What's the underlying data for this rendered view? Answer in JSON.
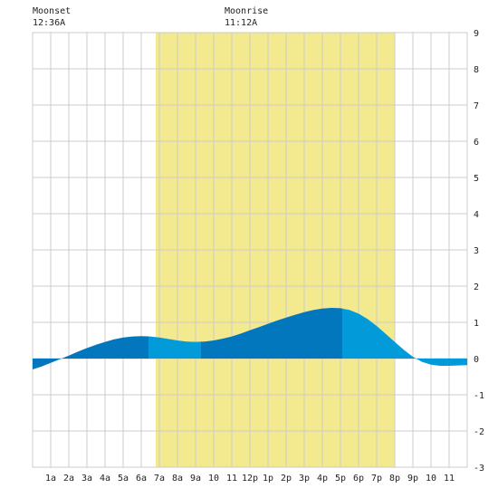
{
  "colors": {
    "background": "#ffffff",
    "plot_background": "#ffffff",
    "grid": "#cccccc",
    "daylight": "#f3ea8f",
    "tide_dark": "#0277bd",
    "tide_light": "#029ad9"
  },
  "chart_data": {
    "type": "area",
    "title": "",
    "xlabel": "",
    "ylabel": "",
    "x_unit": "hour of day",
    "xlim": [
      0,
      24
    ],
    "ylim": [
      -3,
      9
    ],
    "x_ticks": [
      {
        "hour": 1,
        "label": "1a"
      },
      {
        "hour": 2,
        "label": "2a"
      },
      {
        "hour": 3,
        "label": "3a"
      },
      {
        "hour": 4,
        "label": "4a"
      },
      {
        "hour": 5,
        "label": "5a"
      },
      {
        "hour": 6,
        "label": "6a"
      },
      {
        "hour": 7,
        "label": "7a"
      },
      {
        "hour": 8,
        "label": "8a"
      },
      {
        "hour": 9,
        "label": "9a"
      },
      {
        "hour": 10,
        "label": "10"
      },
      {
        "hour": 11,
        "label": "11"
      },
      {
        "hour": 12,
        "label": "12p"
      },
      {
        "hour": 13,
        "label": "1p"
      },
      {
        "hour": 14,
        "label": "2p"
      },
      {
        "hour": 15,
        "label": "3p"
      },
      {
        "hour": 16,
        "label": "4p"
      },
      {
        "hour": 17,
        "label": "5p"
      },
      {
        "hour": 18,
        "label": "6p"
      },
      {
        "hour": 19,
        "label": "7p"
      },
      {
        "hour": 20,
        "label": "8p"
      },
      {
        "hour": 21,
        "label": "9p"
      },
      {
        "hour": 22,
        "label": "10"
      },
      {
        "hour": 23,
        "label": "11"
      }
    ],
    "y_ticks": [
      {
        "value": 9,
        "label": "9"
      },
      {
        "value": 8,
        "label": "8"
      },
      {
        "value": 7,
        "label": "7"
      },
      {
        "value": 6,
        "label": "6"
      },
      {
        "value": 5,
        "label": "5"
      },
      {
        "value": 4,
        "label": "4"
      },
      {
        "value": 3,
        "label": "3"
      },
      {
        "value": 2,
        "label": "2"
      },
      {
        "value": 1,
        "label": "1"
      },
      {
        "value": 0,
        "label": "0"
      },
      {
        "value": -1,
        "label": "-1"
      },
      {
        "value": -2,
        "label": "-2"
      },
      {
        "value": -3,
        "label": "-3"
      }
    ],
    "daylight": {
      "start_hour": 6.8,
      "end_hour": 20.0
    },
    "tide_curve": {
      "x": [
        0,
        0.5,
        1,
        1.5,
        2,
        2.5,
        3,
        3.5,
        4,
        4.5,
        5,
        5.5,
        6,
        6.5,
        7,
        7.5,
        8,
        8.5,
        9,
        9.5,
        10,
        10.5,
        11,
        11.5,
        12,
        12.5,
        13,
        13.5,
        14,
        14.5,
        15,
        15.5,
        16,
        16.5,
        17,
        17.5,
        18,
        18.5,
        19,
        19.5,
        20,
        20.5,
        21,
        21.5,
        22,
        22.5,
        23,
        23.5,
        24
      ],
      "y": [
        -0.3,
        -0.22,
        -0.12,
        -0.02,
        0.08,
        0.19,
        0.29,
        0.38,
        0.46,
        0.53,
        0.58,
        0.61,
        0.62,
        0.61,
        0.58,
        0.54,
        0.5,
        0.47,
        0.46,
        0.47,
        0.5,
        0.55,
        0.61,
        0.69,
        0.78,
        0.87,
        0.96,
        1.05,
        1.13,
        1.21,
        1.28,
        1.34,
        1.38,
        1.4,
        1.39,
        1.34,
        1.24,
        1.09,
        0.9,
        0.68,
        0.46,
        0.24,
        0.05,
        -0.09,
        -0.17,
        -0.2,
        -0.2,
        -0.19,
        -0.18
      ]
    },
    "tide_bands": [
      {
        "start_hour": 0,
        "end_hour": 2.0,
        "shade": "dark"
      },
      {
        "start_hour": 2.0,
        "end_hour": 6.4,
        "shade": "dark"
      },
      {
        "start_hour": 6.4,
        "end_hour": 9.3,
        "shade": "light"
      },
      {
        "start_hour": 9.3,
        "end_hour": 17.1,
        "shade": "dark"
      },
      {
        "start_hour": 17.1,
        "end_hour": 24,
        "shade": "light"
      }
    ],
    "moon_events": [
      {
        "label": "Moonset",
        "time": "12:36A",
        "hour": 0.6
      },
      {
        "label": "Moonrise",
        "time": "11:12A",
        "hour": 11.2
      }
    ]
  }
}
